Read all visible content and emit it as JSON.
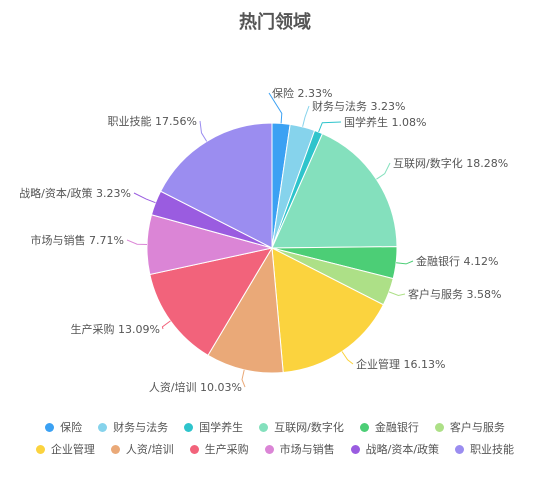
{
  "chart_data": {
    "type": "pie",
    "title": "热门领域",
    "slices": [
      {
        "name": "保险",
        "value": 2.33,
        "label": "保险 2.33%",
        "color": "#3ba1f3"
      },
      {
        "name": "财务与法务",
        "value": 3.23,
        "label": "财务与法务 3.23%",
        "color": "#86d3ec"
      },
      {
        "name": "国学养生",
        "value": 1.08,
        "label": "国学养生 1.08%",
        "color": "#2ec4cc"
      },
      {
        "name": "互联网/数字化",
        "value": 18.28,
        "label": "互联网/数字化 18.28%",
        "color": "#84e0bd"
      },
      {
        "name": "金融银行",
        "value": 4.12,
        "label": "金融银行 4.12%",
        "color": "#4cce76"
      },
      {
        "name": "客户与服务",
        "value": 3.58,
        "label": "客户与服务 3.58%",
        "color": "#ade087"
      },
      {
        "name": "企业管理",
        "value": 16.13,
        "label": "企业管理 16.13%",
        "color": "#fbd33e"
      },
      {
        "name": "人资/培训",
        "value": 10.03,
        "label": "人资/培训 10.03%",
        "color": "#eaa978"
      },
      {
        "name": "生产采购",
        "value": 13.09,
        "label": "生产采购 13.09%",
        "color": "#f2637b"
      },
      {
        "name": "市场与销售",
        "value": 7.71,
        "label": "市场与销售 7.71%",
        "color": "#db85d6"
      },
      {
        "name": "战略/资本/政策",
        "value": 3.23,
        "label": "战略/资本/政策 3.23%",
        "color": "#9a5ce0"
      },
      {
        "name": "职业技能",
        "value": 17.56,
        "label": "职业技能 17.56%",
        "color": "#9b8df0"
      }
    ],
    "legend_position": "bottom"
  }
}
